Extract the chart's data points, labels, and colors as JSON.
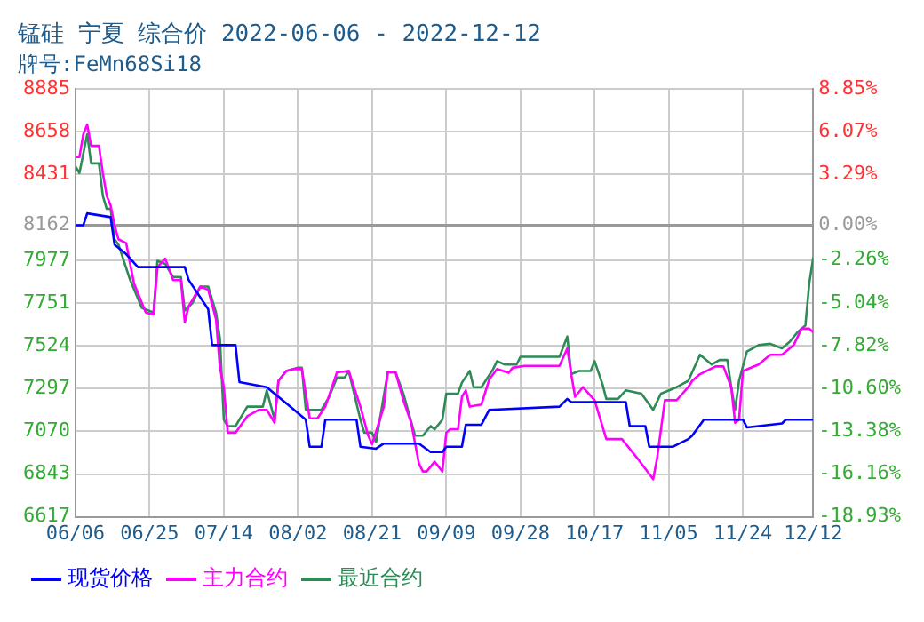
{
  "chart_data": {
    "type": "line",
    "title": "锰硅 宁夏 综合价 2022-06-06 - 2022-12-12",
    "subtitle": "牌号:FeMn68Si18",
    "xlim": [
      "2022-06-06",
      "2022-12-12"
    ],
    "xticks": [
      {
        "value": "2022-06-06",
        "label": "06/06"
      },
      {
        "value": "2022-06-25",
        "label": "06/25"
      },
      {
        "value": "2022-07-14",
        "label": "07/14"
      },
      {
        "value": "2022-08-02",
        "label": "08/02"
      },
      {
        "value": "2022-08-21",
        "label": "08/21"
      },
      {
        "value": "2022-09-09",
        "label": "09/09"
      },
      {
        "value": "2022-09-28",
        "label": "09/28"
      },
      {
        "value": "2022-10-17",
        "label": "10/17"
      },
      {
        "value": "2022-11-05",
        "label": "11/05"
      },
      {
        "value": "2022-11-24",
        "label": "11/24"
      },
      {
        "value": "2022-12-12",
        "label": "12/12"
      }
    ],
    "ylim": [
      6617,
      8885
    ],
    "yticks": [
      6617,
      6843,
      7070,
      7297,
      7524,
      7751,
      7977,
      8162,
      8431,
      8658,
      8885
    ],
    "y2lim": [
      -18.93,
      8.85
    ],
    "y2ticks": [
      {
        "value": -18.93,
        "label": "-18.93%"
      },
      {
        "value": -16.16,
        "label": "-16.16%"
      },
      {
        "value": -13.38,
        "label": "-13.38%"
      },
      {
        "value": -10.6,
        "label": "-10.60%"
      },
      {
        "value": -7.82,
        "label": "-7.82%"
      },
      {
        "value": -5.04,
        "label": "-5.04%"
      },
      {
        "value": -2.26,
        "label": "-2.26%"
      },
      {
        "value": 0,
        "label": "0.00%"
      },
      {
        "value": 3.29,
        "label": "3.29%"
      },
      {
        "value": 6.07,
        "label": "6.07%"
      },
      {
        "value": 8.85,
        "label": "8.85%"
      }
    ],
    "ref_lines": [
      {
        "axis": "y",
        "value": 8162,
        "label": null,
        "color": "#999999",
        "line_style": "solid"
      }
    ],
    "grid": true,
    "legend": "bottom",
    "marker": "none",
    "line_style": "solid",
    "series": [
      {
        "name": "现货价格",
        "color": "#0000ff",
        "x": [
          "2022-06-06",
          "2022-06-08",
          "2022-06-09",
          "2022-06-15",
          "2022-06-16",
          "2022-06-19",
          "2022-06-22",
          "2022-07-04",
          "2022-07-05",
          "2022-07-10",
          "2022-07-11",
          "2022-07-17",
          "2022-07-18",
          "2022-07-25",
          "2022-07-31",
          "2022-08-04",
          "2022-08-05",
          "2022-08-08",
          "2022-08-09",
          "2022-08-17",
          "2022-08-18",
          "2022-08-22",
          "2022-08-24",
          "2022-09-02",
          "2022-09-05",
          "2022-09-08",
          "2022-09-09",
          "2022-09-13",
          "2022-09-14",
          "2022-09-18",
          "2022-09-20",
          "2022-10-08",
          "2022-10-10",
          "2022-10-11",
          "2022-10-25",
          "2022-10-26",
          "2022-10-30",
          "2022-10-31",
          "2022-11-06",
          "2022-11-10",
          "2022-11-11",
          "2022-11-14",
          "2022-11-24",
          "2022-11-25",
          "2022-12-04",
          "2022-12-05",
          "2022-12-12"
        ],
        "values": [
          8162,
          8162,
          8225,
          8205,
          8060,
          8009,
          7940,
          7940,
          7872,
          7717,
          7527,
          7527,
          7331,
          7304,
          7201,
          7132,
          6988,
          6988,
          7132,
          7132,
          6988,
          6978,
          7005,
          7005,
          6960,
          6960,
          6988,
          6988,
          7105,
          7105,
          7184,
          7201,
          7242,
          7225,
          7225,
          7098,
          7098,
          6988,
          6988,
          7029,
          7047,
          7132,
          7132,
          7091,
          7112,
          7132,
          7132
        ]
      },
      {
        "name": "主力合约",
        "color": "#ff00ff",
        "x": [
          "2022-06-06",
          "2022-06-07",
          "2022-06-08",
          "2022-06-09",
          "2022-06-10",
          "2022-06-12",
          "2022-06-13",
          "2022-06-14",
          "2022-06-15",
          "2022-06-16",
          "2022-06-17",
          "2022-06-19",
          "2022-06-20",
          "2022-06-21",
          "2022-06-24",
          "2022-06-26",
          "2022-06-27",
          "2022-06-29",
          "2022-07-01",
          "2022-07-03",
          "2022-07-04",
          "2022-07-05",
          "2022-07-08",
          "2022-07-10",
          "2022-07-12",
          "2022-07-13",
          "2022-07-14",
          "2022-07-15",
          "2022-07-17",
          "2022-07-20",
          "2022-07-23",
          "2022-07-25",
          "2022-07-27",
          "2022-07-28",
          "2022-07-30",
          "2022-08-01",
          "2022-08-03",
          "2022-08-05",
          "2022-08-07",
          "2022-08-09",
          "2022-08-12",
          "2022-08-15",
          "2022-08-18",
          "2022-08-20",
          "2022-08-21",
          "2022-08-24",
          "2022-08-25",
          "2022-08-27",
          "2022-08-29",
          "2022-08-31",
          "2022-09-02",
          "2022-09-03",
          "2022-09-04",
          "2022-09-06",
          "2022-09-08",
          "2022-09-09",
          "2022-09-10",
          "2022-09-12",
          "2022-09-13",
          "2022-09-14",
          "2022-09-15",
          "2022-09-18",
          "2022-09-20",
          "2022-09-22",
          "2022-09-25",
          "2022-09-26",
          "2022-09-29",
          "2022-10-08",
          "2022-10-10",
          "2022-10-11",
          "2022-10-12",
          "2022-10-14",
          "2022-10-17",
          "2022-10-20",
          "2022-10-24",
          "2022-10-28",
          "2022-11-01",
          "2022-11-02",
          "2022-11-04",
          "2022-11-07",
          "2022-11-10",
          "2022-11-11",
          "2022-11-13",
          "2022-11-17",
          "2022-11-19",
          "2022-11-21",
          "2022-11-22",
          "2022-11-23",
          "2022-11-24",
          "2022-11-28",
          "2022-12-01",
          "2022-12-04",
          "2022-12-06",
          "2022-12-07",
          "2022-12-09",
          "2022-12-11",
          "2022-12-12"
        ],
        "values": [
          8524,
          8524,
          8645,
          8696,
          8583,
          8583,
          8439,
          8318,
          8267,
          8163,
          8088,
          8067,
          7957,
          7854,
          7700,
          7689,
          7940,
          7985,
          7872,
          7872,
          7648,
          7733,
          7837,
          7820,
          7665,
          7407,
          7304,
          7063,
          7063,
          7150,
          7184,
          7184,
          7115,
          7338,
          7390,
          7400,
          7400,
          7139,
          7139,
          7201,
          7383,
          7390,
          7201,
          7047,
          7002,
          7201,
          7383,
          7383,
          7235,
          7115,
          6898,
          6857,
          6857,
          6909,
          6857,
          7063,
          7081,
          7081,
          7253,
          7287,
          7201,
          7212,
          7345,
          7400,
          7380,
          7407,
          7417,
          7417,
          7510,
          7373,
          7253,
          7304,
          7235,
          7029,
          7029,
          6926,
          6816,
          6926,
          7235,
          7235,
          7304,
          7338,
          7373,
          7414,
          7414,
          7304,
          7115,
          7132,
          7390,
          7424,
          7476,
          7476,
          7510,
          7527,
          7614,
          7614,
          7596
        ]
      },
      {
        "name": "最近合约",
        "color": "#2e8b57",
        "x": [
          "2022-06-06",
          "2022-06-07",
          "2022-06-09",
          "2022-06-10",
          "2022-06-12",
          "2022-06-13",
          "2022-06-14",
          "2022-06-15",
          "2022-06-16",
          "2022-06-17",
          "2022-06-20",
          "2022-06-23",
          "2022-06-26",
          "2022-06-27",
          "2022-06-29",
          "2022-07-01",
          "2022-07-03",
          "2022-07-04",
          "2022-07-06",
          "2022-07-08",
          "2022-07-10",
          "2022-07-12",
          "2022-07-13",
          "2022-07-14",
          "2022-07-15",
          "2022-07-17",
          "2022-07-20",
          "2022-07-24",
          "2022-07-25",
          "2022-07-27",
          "2022-07-28",
          "2022-07-30",
          "2022-08-02",
          "2022-08-03",
          "2022-08-04",
          "2022-08-08",
          "2022-08-10",
          "2022-08-12",
          "2022-08-14",
          "2022-08-15",
          "2022-08-18",
          "2022-08-19",
          "2022-08-21",
          "2022-08-22",
          "2022-08-25",
          "2022-08-27",
          "2022-08-29",
          "2022-09-01",
          "2022-09-03",
          "2022-09-05",
          "2022-09-06",
          "2022-09-08",
          "2022-09-09",
          "2022-09-12",
          "2022-09-13",
          "2022-09-15",
          "2022-09-16",
          "2022-09-18",
          "2022-09-21",
          "2022-09-22",
          "2022-09-24",
          "2022-09-27",
          "2022-09-28",
          "2022-10-08",
          "2022-10-10",
          "2022-10-11",
          "2022-10-13",
          "2022-10-16",
          "2022-10-17",
          "2022-10-19",
          "2022-10-20",
          "2022-10-23",
          "2022-10-25",
          "2022-10-29",
          "2022-11-01",
          "2022-11-03",
          "2022-11-07",
          "2022-11-10",
          "2022-11-13",
          "2022-11-16",
          "2022-11-18",
          "2022-11-20",
          "2022-11-21",
          "2022-11-22",
          "2022-11-23",
          "2022-11-25",
          "2022-11-28",
          "2022-12-01",
          "2022-12-04",
          "2022-12-06",
          "2022-12-08",
          "2022-12-10",
          "2022-12-11",
          "2022-12-12"
        ],
        "values": [
          8473,
          8439,
          8645,
          8490,
          8490,
          8318,
          8249,
          8249,
          8088,
          8060,
          7872,
          7724,
          7700,
          7974,
          7957,
          7888,
          7888,
          7710,
          7751,
          7837,
          7837,
          7700,
          7562,
          7132,
          7098,
          7098,
          7201,
          7201,
          7287,
          7132,
          7338,
          7390,
          7407,
          7407,
          7184,
          7184,
          7253,
          7356,
          7356,
          7390,
          7132,
          7063,
          7063,
          7012,
          7383,
          7383,
          7270,
          7047,
          7047,
          7098,
          7081,
          7132,
          7270,
          7270,
          7328,
          7390,
          7304,
          7304,
          7400,
          7442,
          7424,
          7424,
          7465,
          7465,
          7573,
          7373,
          7390,
          7390,
          7442,
          7321,
          7242,
          7242,
          7287,
          7270,
          7184,
          7270,
          7304,
          7338,
          7476,
          7424,
          7448,
          7448,
          7304,
          7184,
          7338,
          7493,
          7527,
          7534,
          7510,
          7545,
          7596,
          7631,
          7854,
          7991
        ]
      }
    ]
  }
}
